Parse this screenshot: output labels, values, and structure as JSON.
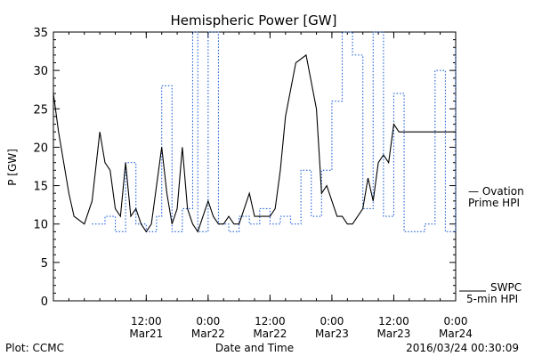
{
  "chart_data": {
    "type": "line",
    "title": "Hemispheric Power [GW]",
    "xlabel": "Date and Time",
    "ylabel": "P [GW]",
    "ylim": [
      0,
      35
    ],
    "yticks": [
      0,
      5,
      10,
      15,
      20,
      25,
      30,
      35
    ],
    "xlim": [
      "2016-03-20T18:00",
      "2016-03-24T00:00"
    ],
    "xticks": [
      {
        "time": "2016-03-21T12:00",
        "label": "12:00",
        "sublabel": "Mar21"
      },
      {
        "time": "2016-03-22T00:00",
        "label": "0:00",
        "sublabel": "Mar22"
      },
      {
        "time": "2016-03-22T12:00",
        "label": "12:00",
        "sublabel": "Mar22"
      },
      {
        "time": "2016-03-23T00:00",
        "label": "0:00",
        "sublabel": "Mar23"
      },
      {
        "time": "2016-03-23T12:00",
        "label": "12:00",
        "sublabel": "Mar23"
      },
      {
        "time": "2016-03-24T00:00",
        "label": "0:00",
        "sublabel": "Mar24"
      }
    ],
    "series": [
      {
        "name": "SWPC 5-min HPI",
        "color": "#000000",
        "style": "solid",
        "x": [
          "2016-03-20T18:00",
          "2016-03-20T19:00",
          "2016-03-20T20:00",
          "2016-03-20T21:00",
          "2016-03-20T22:00",
          "2016-03-21T00:00",
          "2016-03-21T01:30",
          "2016-03-21T03:00",
          "2016-03-21T04:00",
          "2016-03-21T05:00",
          "2016-03-21T06:00",
          "2016-03-21T07:00",
          "2016-03-21T08:00",
          "2016-03-21T09:00",
          "2016-03-21T10:00",
          "2016-03-21T11:00",
          "2016-03-21T12:00",
          "2016-03-21T13:00",
          "2016-03-21T14:00",
          "2016-03-21T15:00",
          "2016-03-21T16:00",
          "2016-03-21T17:00",
          "2016-03-21T18:00",
          "2016-03-21T19:00",
          "2016-03-21T20:00",
          "2016-03-21T21:00",
          "2016-03-21T22:00",
          "2016-03-21T23:00",
          "2016-03-22T00:00",
          "2016-03-22T01:00",
          "2016-03-22T02:00",
          "2016-03-22T03:00",
          "2016-03-22T04:00",
          "2016-03-22T05:00",
          "2016-03-22T06:00",
          "2016-03-22T07:00",
          "2016-03-22T08:00",
          "2016-03-22T09:00",
          "2016-03-22T10:00",
          "2016-03-22T11:00",
          "2016-03-22T12:00",
          "2016-03-22T13:00",
          "2016-03-22T14:00",
          "2016-03-22T15:00",
          "2016-03-22T17:00",
          "2016-03-22T19:00",
          "2016-03-22T21:00",
          "2016-03-22T22:00",
          "2016-03-22T23:00",
          "2016-03-23T00:00",
          "2016-03-23T01:00",
          "2016-03-23T02:00",
          "2016-03-23T03:00",
          "2016-03-23T04:00",
          "2016-03-23T05:00",
          "2016-03-23T06:00",
          "2016-03-23T07:00",
          "2016-03-23T08:00",
          "2016-03-23T09:00",
          "2016-03-23T10:00",
          "2016-03-23T11:00",
          "2016-03-23T12:00",
          "2016-03-23T13:00",
          "2016-03-23T14:00",
          "2016-03-23T15:00",
          "2016-03-23T16:00",
          "2016-03-23T17:00",
          "2016-03-23T18:00",
          "2016-03-23T19:00",
          "2016-03-23T20:00",
          "2016-03-23T21:00",
          "2016-03-23T22:00",
          "2016-03-23T23:00",
          "2016-03-24T00:00"
        ],
        "y": [
          27,
          22,
          18,
          14,
          11,
          10,
          13,
          22,
          18,
          17,
          12,
          11,
          18,
          11,
          12,
          10,
          9,
          10,
          15,
          20,
          14,
          10,
          12,
          20,
          12,
          10,
          9,
          11,
          13,
          11,
          10,
          10,
          11,
          10,
          10,
          12,
          14,
          11,
          11,
          11,
          11,
          12,
          17,
          24,
          31,
          32,
          25,
          14,
          15,
          13,
          11,
          11,
          10,
          10,
          11,
          12,
          16,
          13,
          18,
          19,
          18,
          23,
          22,
          22,
          22,
          22,
          22,
          22,
          22,
          22,
          22,
          22,
          22,
          22
        ]
      },
      {
        "name": "Ovation Prime HPI",
        "color": "#1f5fd6",
        "style": "dotted",
        "x": [
          "2016-03-21T01:30",
          "2016-03-21T04:00",
          "2016-03-21T06:00",
          "2016-03-21T08:00",
          "2016-03-21T10:00",
          "2016-03-21T12:00",
          "2016-03-21T14:00",
          "2016-03-21T15:00",
          "2016-03-21T17:00",
          "2016-03-21T19:00",
          "2016-03-21T21:00",
          "2016-03-21T22:00",
          "2016-03-22T00:00",
          "2016-03-22T02:00",
          "2016-03-22T04:00",
          "2016-03-22T06:00",
          "2016-03-22T08:00",
          "2016-03-22T10:00",
          "2016-03-22T12:00",
          "2016-03-22T14:00",
          "2016-03-22T16:00",
          "2016-03-22T18:00",
          "2016-03-22T20:00",
          "2016-03-22T22:00",
          "2016-03-23T00:00",
          "2016-03-23T02:00",
          "2016-03-23T04:00",
          "2016-03-23T06:00",
          "2016-03-23T08:00",
          "2016-03-23T10:00",
          "2016-03-23T12:00",
          "2016-03-23T14:00",
          "2016-03-23T16:00",
          "2016-03-23T18:00",
          "2016-03-23T20:00",
          "2016-03-23T22:00",
          "2016-03-24T00:00"
        ],
        "y": [
          10,
          11,
          9,
          18,
          10,
          9,
          11,
          28,
          9,
          12,
          35,
          9,
          35,
          10,
          9,
          11,
          10,
          12,
          10,
          11,
          10,
          17,
          11,
          17,
          26,
          35,
          32,
          12,
          35,
          11,
          27,
          9,
          9,
          10,
          30,
          9,
          33
        ]
      }
    ],
    "legend": [
      {
        "label_line1": "— Ovation",
        "label_line2": "Prime HPI",
        "color": "#1f5fd6"
      },
      {
        "label_line1": "SWPC",
        "label_line2": "5-min HPI",
        "color": "#000000"
      }
    ],
    "footer_left": "Plot: CCMC",
    "footer_right": "2016/03/24 00:30:09",
    "grid": false
  }
}
